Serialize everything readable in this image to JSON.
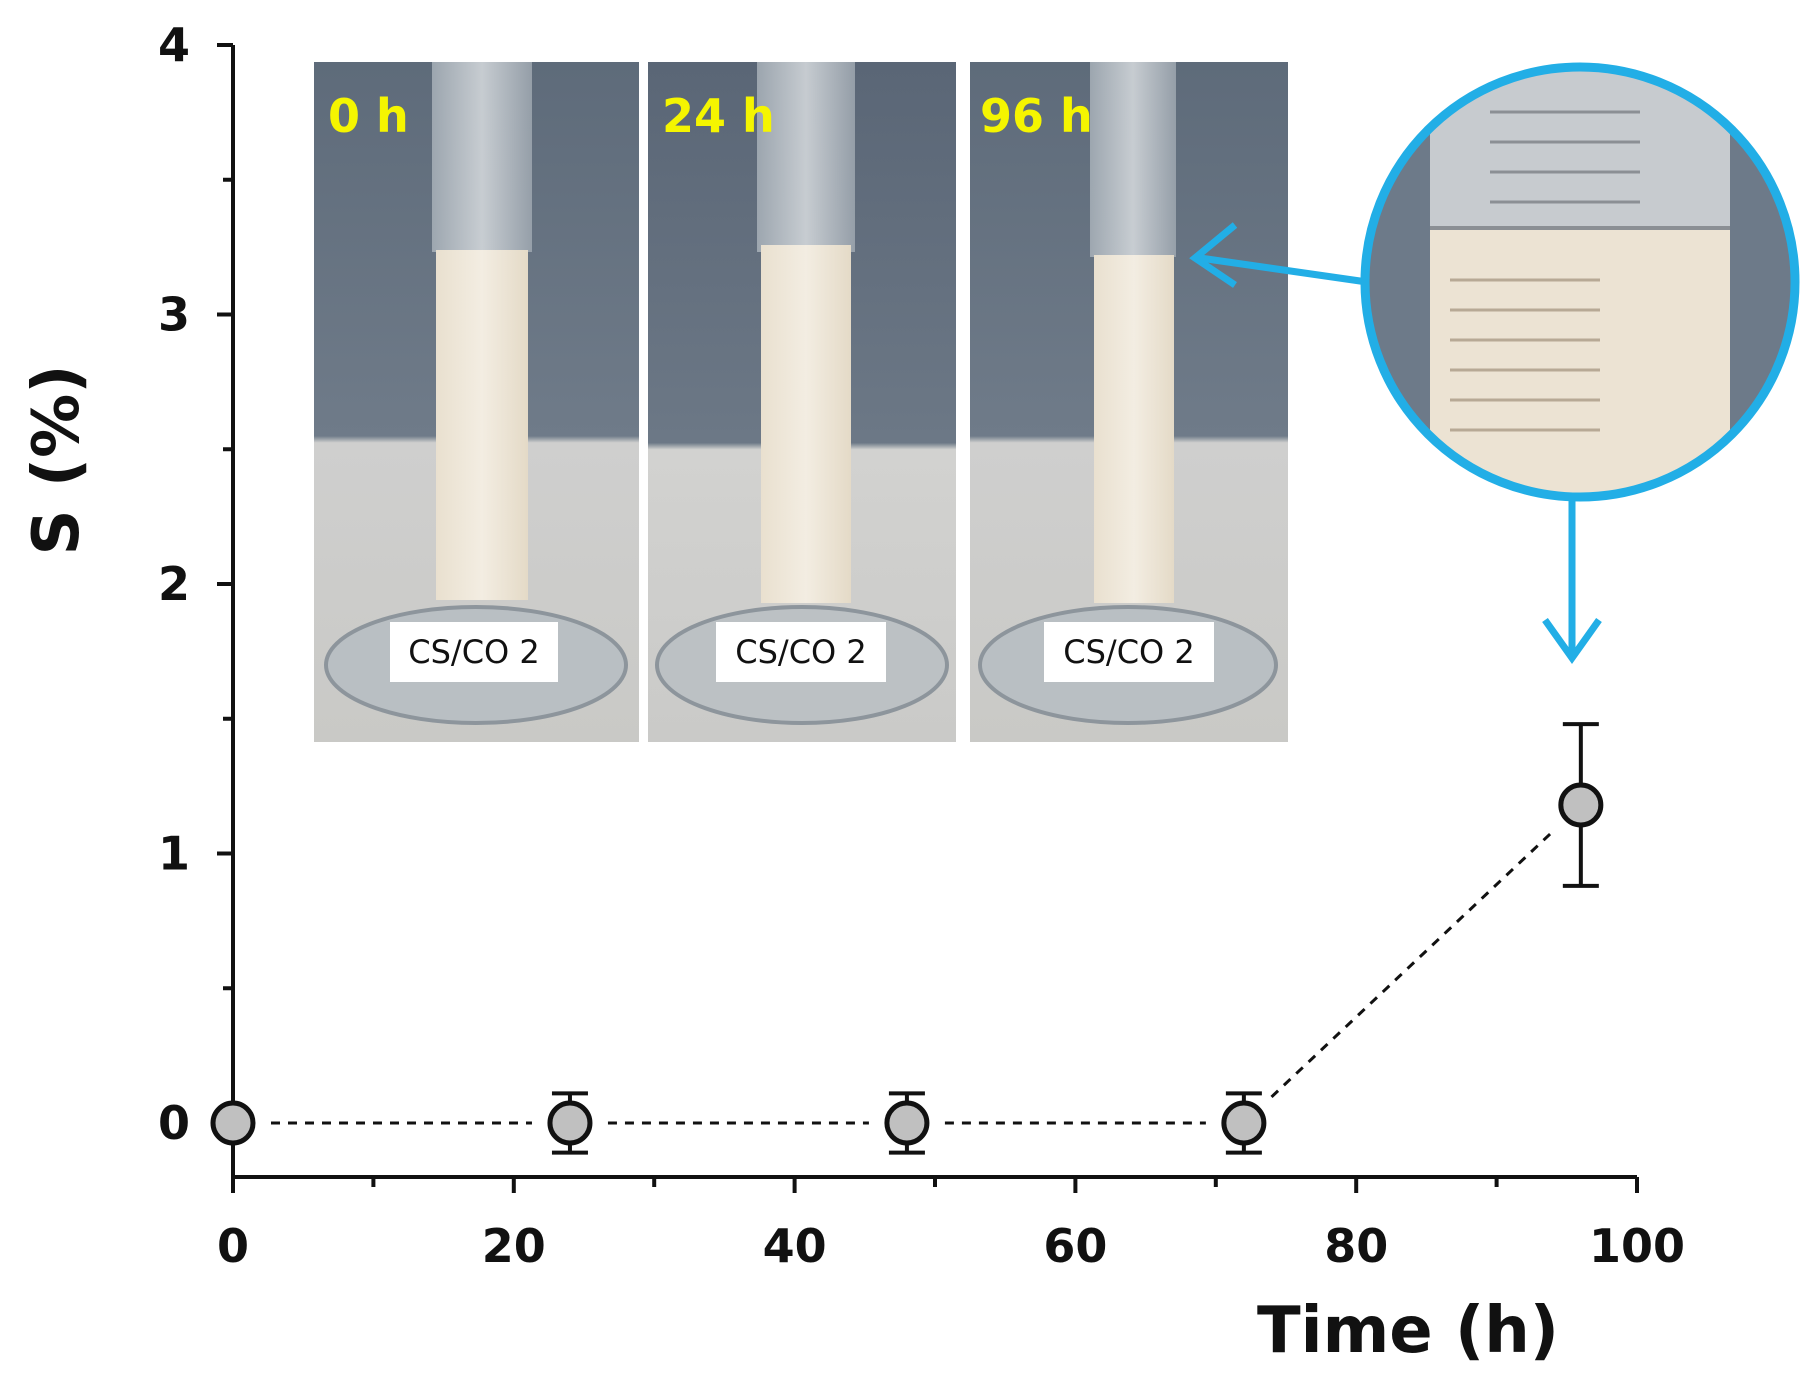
{
  "chart_data": {
    "type": "scatter",
    "xlabel": "Time (h)",
    "ylabel": "S (%)",
    "xlim": [
      0,
      100
    ],
    "ylim": [
      -0.2,
      4
    ],
    "x_ticks": [
      0,
      20,
      40,
      60,
      80,
      100
    ],
    "y_ticks": [
      0,
      1,
      2,
      3,
      4
    ],
    "grid": false,
    "series": [
      {
        "x": [
          0,
          24,
          48,
          72,
          96
        ],
        "y": [
          0,
          0,
          0,
          0,
          1.18
        ],
        "error": [
          0,
          0.11,
          0.11,
          0.11,
          0.3
        ],
        "marker_color": "#c0c0c0",
        "line_style": "dashed"
      }
    ],
    "inset_photos": [
      {
        "time_label": "0 h",
        "sample_label": "CS/CO 2"
      },
      {
        "time_label": "24 h",
        "sample_label": "CS/CO 2"
      },
      {
        "time_label": "96 h",
        "sample_label": "CS/CO 2"
      }
    ],
    "colors": {
      "callout": "#22aee6",
      "time_label": "#f5f500"
    }
  }
}
